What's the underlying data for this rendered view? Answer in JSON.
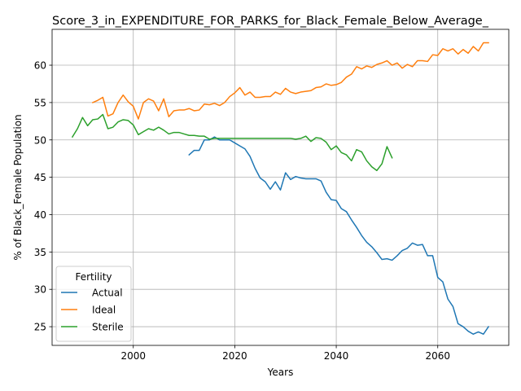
{
  "chart_data": {
    "type": "line",
    "title": "Score_3_in_EXPENDITURE_FOR_PARKS_for_Black_Female_Below_Average_",
    "xlabel": "Years",
    "ylabel": "% of Black_Female Population",
    "xlim": [
      1984,
      2074
    ],
    "ylim": [
      22.5,
      64.8
    ],
    "xticks": [
      2000,
      2020,
      2040,
      2060
    ],
    "yticks": [
      25,
      30,
      35,
      40,
      45,
      50,
      55,
      60
    ],
    "grid": true,
    "legend": {
      "title": "Fertility",
      "position": "lower-left"
    },
    "series": [
      {
        "name": "Actual",
        "color": "#1f77b4",
        "x": [
          2011,
          2012,
          2013,
          2014,
          2015,
          2016,
          2017,
          2018,
          2019,
          2020,
          2021,
          2022,
          2023,
          2024,
          2025,
          2026,
          2027,
          2028,
          2029,
          2030,
          2031,
          2032,
          2033,
          2034,
          2035,
          2036,
          2037,
          2038,
          2039,
          2040,
          2041,
          2042,
          2043,
          2044,
          2045,
          2046,
          2047,
          2048,
          2049,
          2050,
          2051,
          2052,
          2053,
          2054,
          2055,
          2056,
          2057,
          2058,
          2059,
          2060,
          2061,
          2062,
          2063,
          2064,
          2065,
          2066,
          2067,
          2068,
          2069,
          2070
        ],
        "y": [
          48.0,
          48.6,
          48.6,
          50.0,
          50.0,
          50.4,
          50.0,
          50.0,
          50.0,
          49.6,
          49.2,
          48.8,
          47.8,
          46.2,
          44.9,
          44.4,
          43.4,
          44.4,
          43.3,
          45.6,
          44.7,
          45.1,
          44.9,
          44.8,
          44.8,
          44.8,
          44.5,
          43.0,
          42.0,
          41.9,
          40.8,
          40.4,
          39.3,
          38.3,
          37.2,
          36.3,
          35.7,
          34.9,
          34.0,
          34.1,
          33.9,
          34.5,
          35.2,
          35.5,
          36.2,
          35.9,
          36.0,
          34.5,
          34.5,
          31.6,
          31.0,
          28.7,
          27.7,
          25.4,
          25.0,
          24.4,
          24.0,
          24.3,
          24.0,
          25.0
        ]
      },
      {
        "name": "Ideal",
        "color": "#ff7f0e",
        "x": [
          1992,
          1993,
          1994,
          1995,
          1996,
          1997,
          1998,
          1999,
          2000,
          2001,
          2002,
          2003,
          2004,
          2005,
          2006,
          2007,
          2008,
          2009,
          2010,
          2011,
          2012,
          2013,
          2014,
          2015,
          2016,
          2017,
          2018,
          2019,
          2020,
          2021,
          2022,
          2023,
          2024,
          2025,
          2026,
          2027,
          2028,
          2029,
          2030,
          2031,
          2032,
          2033,
          2034,
          2035,
          2036,
          2037,
          2038,
          2039,
          2040,
          2041,
          2042,
          2043,
          2044,
          2045,
          2046,
          2047,
          2048,
          2049,
          2050,
          2051,
          2052,
          2053,
          2054,
          2055,
          2056,
          2057,
          2058,
          2059,
          2060,
          2061,
          2062,
          2063,
          2064,
          2065,
          2066,
          2067,
          2068,
          2069,
          2070
        ],
        "y": [
          55.0,
          55.3,
          55.7,
          53.2,
          53.5,
          55.0,
          56.0,
          55.1,
          54.5,
          52.8,
          55.0,
          55.5,
          55.2,
          53.9,
          55.5,
          53.1,
          53.9,
          54.0,
          54.0,
          54.2,
          53.9,
          54.0,
          54.8,
          54.7,
          54.9,
          54.6,
          55.0,
          55.8,
          56.3,
          57.0,
          56.0,
          56.4,
          55.7,
          55.7,
          55.8,
          55.8,
          56.4,
          56.1,
          56.9,
          56.4,
          56.2,
          56.4,
          56.5,
          56.6,
          57.0,
          57.1,
          57.5,
          57.3,
          57.4,
          57.7,
          58.4,
          58.8,
          59.8,
          59.5,
          59.9,
          59.7,
          60.1,
          60.3,
          60.6,
          60.0,
          60.3,
          59.6,
          60.1,
          59.8,
          60.6,
          60.6,
          60.5,
          61.4,
          61.3,
          62.2,
          61.9,
          62.2,
          61.5,
          62.1,
          61.6,
          62.5,
          61.9,
          63.0,
          63.0
        ]
      },
      {
        "name": "Sterile",
        "color": "#2ca02c",
        "x": [
          1988,
          1989,
          1990,
          1991,
          1992,
          1993,
          1994,
          1995,
          1996,
          1997,
          1998,
          1999,
          2000,
          2001,
          2002,
          2003,
          2004,
          2005,
          2006,
          2007,
          2008,
          2009,
          2010,
          2011,
          2012,
          2013,
          2014,
          2015,
          2016,
          2017,
          2018,
          2019,
          2020,
          2021,
          2022,
          2023,
          2024,
          2025,
          2026,
          2027,
          2028,
          2029,
          2030,
          2031,
          2032,
          2033,
          2034,
          2035,
          2036,
          2037,
          2038,
          2039,
          2040,
          2041,
          2042,
          2043,
          2044,
          2045,
          2046,
          2047,
          2048,
          2049,
          2050,
          2051
        ],
        "y": [
          50.4,
          51.5,
          53.0,
          51.9,
          52.7,
          52.8,
          53.4,
          51.5,
          51.7,
          52.4,
          52.7,
          52.6,
          52.0,
          50.7,
          51.1,
          51.5,
          51.3,
          51.7,
          51.3,
          50.8,
          51.0,
          51.0,
          50.8,
          50.6,
          50.6,
          50.5,
          50.5,
          50.1,
          50.2,
          50.2,
          50.2,
          50.2,
          50.2,
          50.2,
          50.2,
          50.2,
          50.2,
          50.2,
          50.2,
          50.2,
          50.2,
          50.2,
          50.2,
          50.2,
          50.1,
          50.2,
          50.5,
          49.8,
          50.3,
          50.2,
          49.7,
          48.7,
          49.2,
          48.3,
          48.0,
          47.2,
          48.7,
          48.4,
          47.2,
          46.4,
          45.9,
          46.8,
          49.1,
          47.6
        ]
      }
    ]
  }
}
